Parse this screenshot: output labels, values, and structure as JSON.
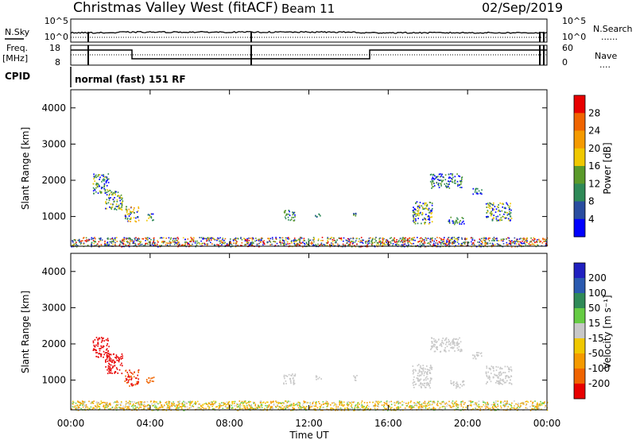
{
  "header": {
    "title": "Christmas Valley West (fitACF)",
    "beam": "Beam 11",
    "date": "02/Sep/2019"
  },
  "labels": {
    "nsky": "N.Sky",
    "nsearch": "N.Search",
    "freq": "Freq.",
    "mhz": "[MHz]",
    "nave": "Nave",
    "cpid": "CPID",
    "cpid_value": "normal (fast) 151 RF",
    "dots": "......",
    "dots_short": "...."
  },
  "noise_ticks": {
    "left_top": "10^5",
    "left_bottom": "10^0",
    "right_top": "10^5",
    "right_bottom": "10^0"
  },
  "freq_ticks": {
    "left_top": "18",
    "left_bottom": "8",
    "right_top": "60",
    "right_bottom": "0"
  },
  "colors": {
    "power": [
      "#0000ff",
      "#2a4da0",
      "#2f8a58",
      "#5a9a2a",
      "#f0c800",
      "#f59a00",
      "#f06400",
      "#e80000"
    ],
    "velocity": [
      "#2020c0",
      "#2a5ab0",
      "#2f8a58",
      "#66cc44",
      "#c8c8c8",
      "#f0c800",
      "#f59a00",
      "#f06400",
      "#e80000"
    ],
    "ground_power": [
      "#0000ff",
      "#2a4da0",
      "#2f8a58",
      "#5a9a2a",
      "#f0c800",
      "#f06400",
      "#e80000"
    ],
    "ground_velocity": [
      "#f0a000",
      "#f59a00",
      "#66cc44",
      "#c8c8c8",
      "#f0c800"
    ]
  },
  "chart_data": [
    {
      "type": "heatmap",
      "name": "power",
      "xlabel": "",
      "ylabel": "Slant Range [km]",
      "colorbar_label": "Power [dB]",
      "colorbar_ticks": [
        "4",
        "8",
        "12",
        "16",
        "20",
        "24",
        "28"
      ],
      "ylim": [
        180,
        4500
      ],
      "y_ticks": [
        1000,
        2000,
        3000,
        4000
      ],
      "blobs": [
        {
          "t0": 1.1,
          "t1": 1.9,
          "r0": 1650,
          "r1": 2200,
          "c": [
            0.05,
            0.25,
            0.45,
            0.6
          ]
        },
        {
          "t0": 1.7,
          "t1": 2.6,
          "r0": 1200,
          "r1": 1750,
          "c": [
            0.05,
            0.25,
            0.45,
            0.6
          ]
        },
        {
          "t0": 2.7,
          "t1": 3.4,
          "r0": 850,
          "r1": 1300,
          "c": [
            0.1,
            0.3,
            0.55,
            0.7
          ]
        },
        {
          "t0": 3.8,
          "t1": 4.2,
          "r0": 900,
          "r1": 1100,
          "c": [
            0.1,
            0.3,
            0.5
          ]
        },
        {
          "t0": 10.7,
          "t1": 11.3,
          "r0": 900,
          "r1": 1200,
          "c": [
            0.1,
            0.3,
            0.45
          ]
        },
        {
          "t0": 12.3,
          "t1": 12.6,
          "r0": 1000,
          "r1": 1150,
          "c": [
            0.1,
            0.3
          ]
        },
        {
          "t0": 14.2,
          "t1": 14.4,
          "r0": 1000,
          "r1": 1200,
          "c": [
            0.2,
            0.4
          ]
        },
        {
          "t0": 17.2,
          "t1": 18.2,
          "r0": 800,
          "r1": 1450,
          "c": [
            0.05,
            0.25,
            0.45,
            0.6
          ]
        },
        {
          "t0": 18.1,
          "t1": 19.7,
          "r0": 1800,
          "r1": 2200,
          "c": [
            0.05,
            0.25,
            0.45
          ]
        },
        {
          "t0": 19.0,
          "t1": 19.8,
          "r0": 800,
          "r1": 1000,
          "c": [
            0.1,
            0.3,
            0.45
          ]
        },
        {
          "t0": 20.2,
          "t1": 20.7,
          "r0": 1600,
          "r1": 1800,
          "c": [
            0.1,
            0.3
          ]
        },
        {
          "t0": 20.9,
          "t1": 22.2,
          "r0": 900,
          "r1": 1400,
          "c": [
            0.05,
            0.25,
            0.45,
            0.6
          ]
        }
      ]
    },
    {
      "type": "heatmap",
      "name": "velocity",
      "xlabel": "Time UT",
      "ylabel": "Slant Range [km]",
      "colorbar_label": "Velocity [m s⁻¹]",
      "colorbar_ticks": [
        "200",
        "100",
        "50",
        "15",
        "-15",
        "-50",
        "-100",
        "-200"
      ],
      "ylim": [
        180,
        4500
      ],
      "y_ticks": [
        1000,
        2000,
        3000,
        4000
      ],
      "x_ticks": [
        "00:00",
        "04:00",
        "08:00",
        "12:00",
        "16:00",
        "20:00",
        "00:00"
      ],
      "blobs": [
        {
          "t0": 1.1,
          "t1": 1.9,
          "r0": 1650,
          "r1": 2200,
          "c": [
            0.95
          ]
        },
        {
          "t0": 1.7,
          "t1": 2.6,
          "r0": 1200,
          "r1": 1750,
          "c": [
            0.95
          ]
        },
        {
          "t0": 2.7,
          "t1": 3.4,
          "r0": 850,
          "r1": 1300,
          "c": [
            0.8,
            0.9
          ]
        },
        {
          "t0": 3.8,
          "t1": 4.2,
          "r0": 900,
          "r1": 1100,
          "c": [
            0.8
          ]
        },
        {
          "t0": 10.7,
          "t1": 11.3,
          "r0": 900,
          "r1": 1200,
          "c": [
            0.55,
            0.5
          ]
        },
        {
          "t0": 12.3,
          "t1": 12.6,
          "r0": 1000,
          "r1": 1150,
          "c": [
            0.55
          ]
        },
        {
          "t0": 14.2,
          "t1": 14.4,
          "r0": 1000,
          "r1": 1200,
          "c": [
            0.55
          ]
        },
        {
          "t0": 17.2,
          "t1": 18.2,
          "r0": 800,
          "r1": 1450,
          "c": [
            0.55,
            0.5
          ]
        },
        {
          "t0": 18.1,
          "t1": 19.7,
          "r0": 1800,
          "r1": 2200,
          "c": [
            0.55
          ]
        },
        {
          "t0": 19.0,
          "t1": 19.8,
          "r0": 800,
          "r1": 1000,
          "c": [
            0.55
          ]
        },
        {
          "t0": 20.2,
          "t1": 20.7,
          "r0": 1600,
          "r1": 1800,
          "c": [
            0.55
          ]
        },
        {
          "t0": 20.9,
          "t1": 22.2,
          "r0": 900,
          "r1": 1400,
          "c": [
            0.55,
            0.5
          ]
        }
      ]
    }
  ]
}
